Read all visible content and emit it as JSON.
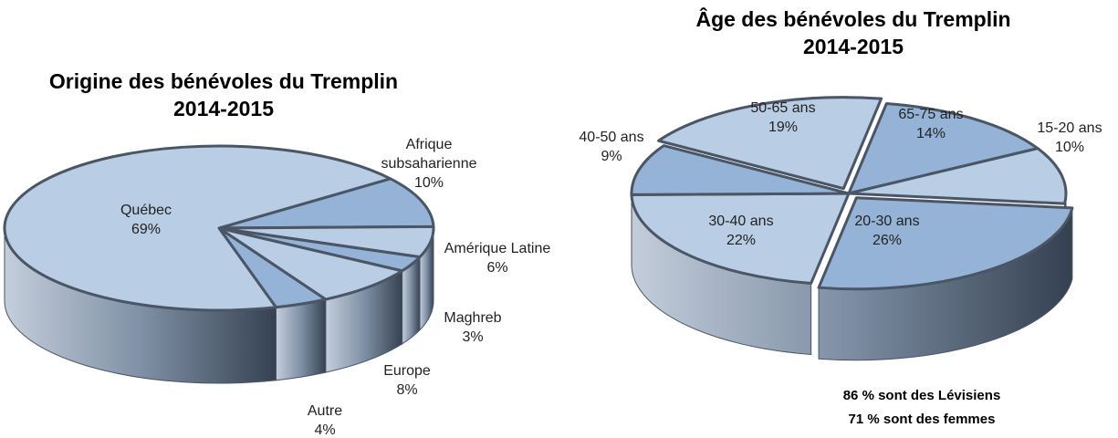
{
  "chart_data": [
    {
      "type": "pie",
      "title": "Origine des bénévoles du Tremplin",
      "subtitle": "2014-2015",
      "categories": [
        "Afrique subsaharienne",
        "Amérique Latine",
        "Maghreb",
        "Europe",
        "Autre",
        "Québec"
      ],
      "values": [
        10,
        6,
        3,
        8,
        4,
        69
      ],
      "value_labels": [
        "10%",
        "6%",
        "3%",
        "8%",
        "4%",
        "69%"
      ],
      "colors": [
        "#95b3d7",
        "#b9cde5",
        "#95b3d7",
        "#b9cde5",
        "#95b3d7",
        "#b9cde5"
      ]
    },
    {
      "type": "pie",
      "title": "Âge des bénévoles du Tremplin",
      "subtitle": "2014-2015",
      "categories": [
        "65-75 ans",
        "15-20 ans",
        "20-30 ans",
        "30-40 ans",
        "40-50 ans",
        "50-65 ans"
      ],
      "values": [
        14,
        10,
        26,
        22,
        9,
        19
      ],
      "value_labels": [
        "14%",
        "10%",
        "26%",
        "22%",
        "9%",
        "19%"
      ],
      "colors": [
        "#95b3d7",
        "#b9cde5",
        "#95b3d7",
        "#b9cde5",
        "#95b3d7",
        "#b9cde5"
      ],
      "annotations": [
        "86 % sont des Lévisiens",
        "71 % sont des femmes"
      ]
    }
  ]
}
